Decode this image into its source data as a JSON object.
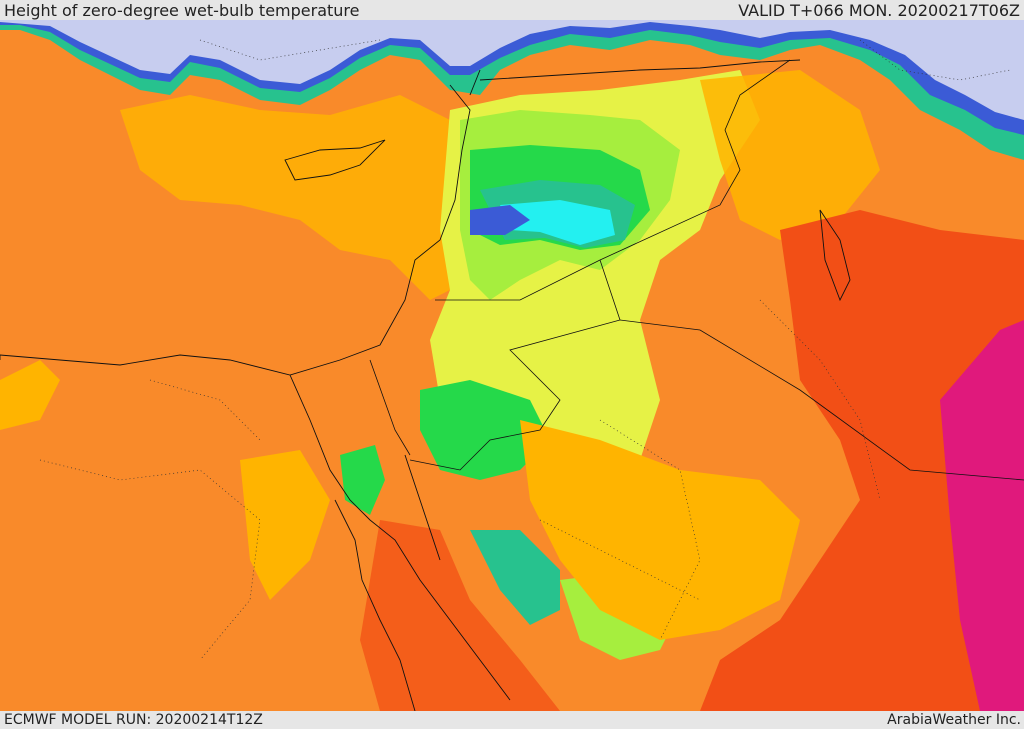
{
  "header": {
    "title": "Height of zero-degree wet-bulb temperature",
    "valid_time": "VALID T+066 MON. 20200217T06Z"
  },
  "footer": {
    "model_run": "ECMWF MODEL RUN: 20200214T12Z",
    "credit": "ArabiaWeather Inc."
  },
  "map": {
    "region": "Eastern Mediterranean, Levant, Egypt, Arabian Peninsula",
    "color_scale": {
      "lowest": "#c7cdef",
      "low_blue": "#3b5bd6",
      "light_blue": "#4fc6f0",
      "cyan": "#23f0f0",
      "teal": "#27c28e",
      "green": "#25d94a",
      "light_green": "#a6ee3e",
      "yellow": "#e6f246",
      "amber": "#ffb400",
      "orange": "#f98a2a",
      "red_orange": "#f24f16",
      "magenta": "#e0197c"
    }
  }
}
